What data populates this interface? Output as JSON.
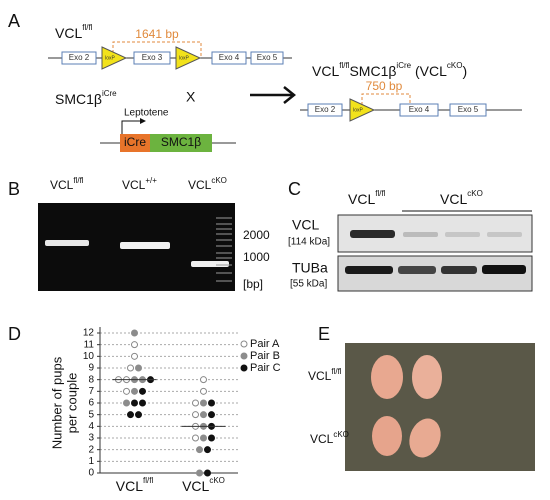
{
  "panels": {
    "a": {
      "letter": "A",
      "top_genotype": {
        "base": "VCL",
        "sup": "fl/fl"
      },
      "top_size": "1641 bp",
      "top_elements": [
        "Exo 2",
        "loxP",
        "Exo 3",
        "loxP",
        "Exo 4",
        "Exo 5"
      ],
      "cre_genotype": {
        "base": "SMC1β",
        "sup": "iCre"
      },
      "cross": "X",
      "promoter": "Leptotene",
      "cre_boxes": [
        "iCre",
        "SMC1β"
      ],
      "result_genotype": {
        "base1": "VCL",
        "sup1": "fl/fl",
        "base2": "SMC1β",
        "sup2": "iCre",
        "base3": " (VCL",
        "sup3": "cKO",
        "end": ")"
      },
      "result_size": "750 bp",
      "result_elements": [
        "Exo 2",
        "loxP",
        "Exo 4",
        "Exo 5"
      ]
    },
    "b": {
      "letter": "B",
      "lanes": [
        {
          "base": "VCL",
          "sup": "fl/fl"
        },
        {
          "base": "VCL",
          "sup": "+/+"
        },
        {
          "base": "VCL",
          "sup": "cKO"
        }
      ],
      "markers": [
        "2000",
        "1000",
        "[bp]"
      ]
    },
    "c": {
      "letter": "C",
      "groups": [
        {
          "base": "VCL",
          "sup": "fl/fl"
        },
        {
          "base": "VCL",
          "sup": "cKO"
        }
      ],
      "rows": [
        {
          "name": "VCL",
          "size": "[114 kDa]"
        },
        {
          "name": "TUBa",
          "size": "[55 kDa]"
        }
      ]
    },
    "d": {
      "letter": "D"
    },
    "e": {
      "letter": "E",
      "labels": [
        {
          "base": "VCL",
          "sup": "fl/fl"
        },
        {
          "base": "VCL",
          "sup": "cKO"
        }
      ]
    }
  },
  "chart_data": {
    "type": "dotplot",
    "ylabel": [
      "Number of pups",
      "per couple"
    ],
    "categories": [
      "VCL",
      "VCL"
    ],
    "category_superscripts": [
      "fl/fl",
      "cKO"
    ],
    "series": [
      {
        "name": "Pair A",
        "color": "#ffffff",
        "values": [
          [
            11,
            10,
            9,
            8,
            8,
            7
          ],
          [
            8,
            7,
            6,
            5,
            4,
            3
          ]
        ]
      },
      {
        "name": "Pair B",
        "color": "#8c8c8c",
        "values": [
          [
            12,
            9,
            8,
            8,
            7,
            6
          ],
          [
            6,
            5,
            4,
            3,
            2,
            0
          ]
        ]
      },
      {
        "name": "Pair C",
        "color": "#111111",
        "values": [
          [
            8,
            7,
            6,
            6,
            5,
            5
          ],
          [
            6,
            5,
            4,
            3,
            2,
            0
          ]
        ]
      }
    ],
    "means": [
      8,
      4
    ],
    "ylim": [
      0,
      12
    ],
    "yticks": [
      0,
      1,
      2,
      3,
      4,
      5,
      6,
      7,
      8,
      9,
      10,
      11,
      12
    ],
    "grid": true
  }
}
